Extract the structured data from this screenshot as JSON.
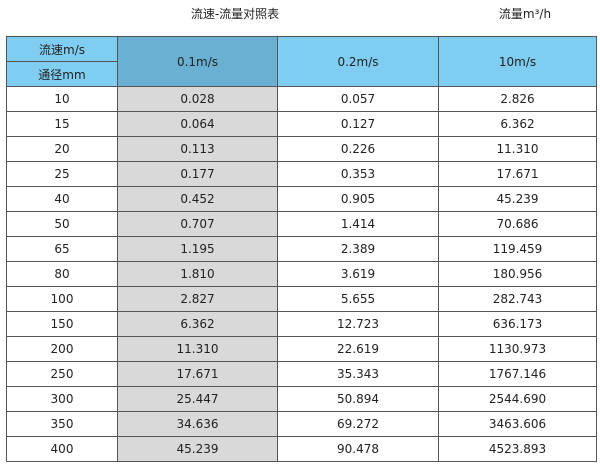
{
  "title": "流速-流量对照表",
  "unit_label": "流量m³/h",
  "colors": {
    "header": "#7fcdf0",
    "header_highlight": "#6ab0d3",
    "highlight_column": "#d9d9d9",
    "border": "#555555"
  },
  "table": {
    "corner_top": "流速m/s",
    "corner_bottom": "通径mm",
    "columns": [
      "0.1m/s",
      "0.2m/s",
      "10m/s"
    ],
    "rows": [
      [
        "10",
        "0.028",
        "0.057",
        "2.826"
      ],
      [
        "15",
        "0.064",
        "0.127",
        "6.362"
      ],
      [
        "20",
        "0.113",
        "0.226",
        "11.310"
      ],
      [
        "25",
        "0.177",
        "0.353",
        "17.671"
      ],
      [
        "40",
        "0.452",
        "0.905",
        "45.239"
      ],
      [
        "50",
        "0.707",
        "1.414",
        "70.686"
      ],
      [
        "65",
        "1.195",
        "2.389",
        "119.459"
      ],
      [
        "80",
        "1.810",
        "3.619",
        "180.956"
      ],
      [
        "100",
        "2.827",
        "5.655",
        "282.743"
      ],
      [
        "150",
        "6.362",
        "12.723",
        "636.173"
      ],
      [
        "200",
        "11.310",
        "22.619",
        "1130.973"
      ],
      [
        "250",
        "17.671",
        "35.343",
        "1767.146"
      ],
      [
        "300",
        "25.447",
        "50.894",
        "2544.690"
      ],
      [
        "350",
        "34.636",
        "69.272",
        "3463.606"
      ],
      [
        "400",
        "45.239",
        "90.478",
        "4523.893"
      ]
    ]
  }
}
